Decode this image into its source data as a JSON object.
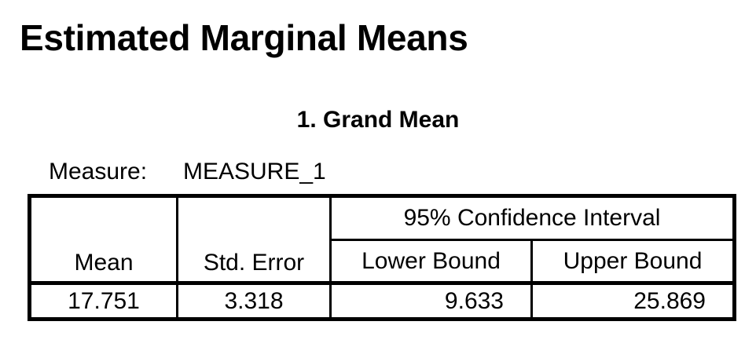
{
  "heading": "Estimated Marginal Means",
  "table_title": "1. Grand Mean",
  "measure": {
    "label": "Measure:",
    "value": "MEASURE_1"
  },
  "table": {
    "columns": {
      "mean": "Mean",
      "std_error": "Std. Error",
      "ci_group": "95% Confidence Interval",
      "lower_bound": "Lower Bound",
      "upper_bound": "Upper Bound"
    },
    "row": {
      "mean": "17.751",
      "std_error": "3.318",
      "lower_bound": "9.633",
      "upper_bound": "25.869"
    }
  }
}
